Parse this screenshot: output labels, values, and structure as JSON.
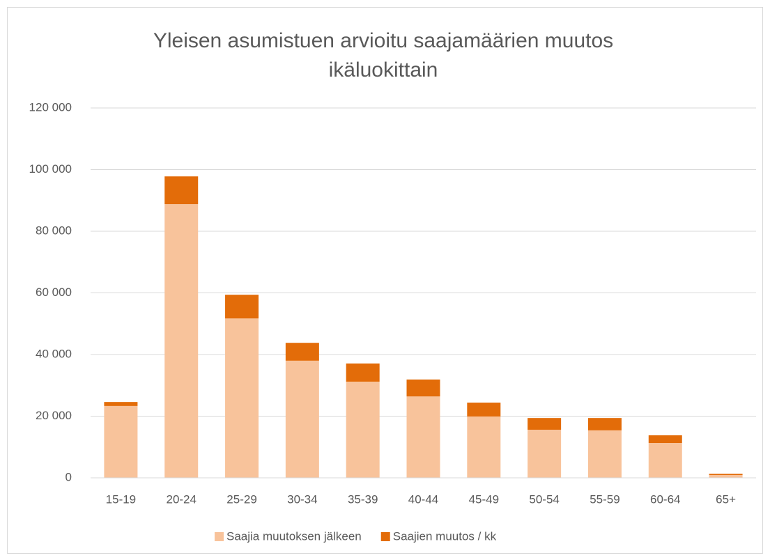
{
  "chart_data": {
    "type": "stacked_bar",
    "title": "Yleisen asumistuen arvioitu saajamäärien muutos ikäluokittain",
    "categories": [
      "15-19",
      "20-24",
      "25-29",
      "30-34",
      "35-39",
      "40-44",
      "45-49",
      "50-54",
      "55-59",
      "60-64",
      "65+"
    ],
    "series": [
      {
        "name": "Saajia muutoksen jälkeen",
        "color": "#f8c39b",
        "values": [
          23300,
          88800,
          51700,
          38000,
          31200,
          26400,
          19900,
          15600,
          15400,
          11300,
          900
        ]
      },
      {
        "name": "Saajien muutos / kk",
        "color": "#e36c09",
        "values": [
          1300,
          9000,
          7700,
          5800,
          5900,
          5500,
          4500,
          3800,
          4000,
          2500,
          400
        ]
      }
    ],
    "ylim": [
      0,
      120000
    ],
    "yticks": [
      0,
      {
        "value": 20000,
        "label": "20 000"
      },
      {
        "value": 40000,
        "label": "40 000"
      },
      {
        "value": 60000,
        "label": "60 000"
      },
      {
        "value": 80000,
        "label": "80 000"
      },
      {
        "value": 100000,
        "label": "100 000"
      },
      {
        "value": 120000,
        "label": "120 000"
      }
    ],
    "grid": true,
    "legend": "bottom"
  }
}
